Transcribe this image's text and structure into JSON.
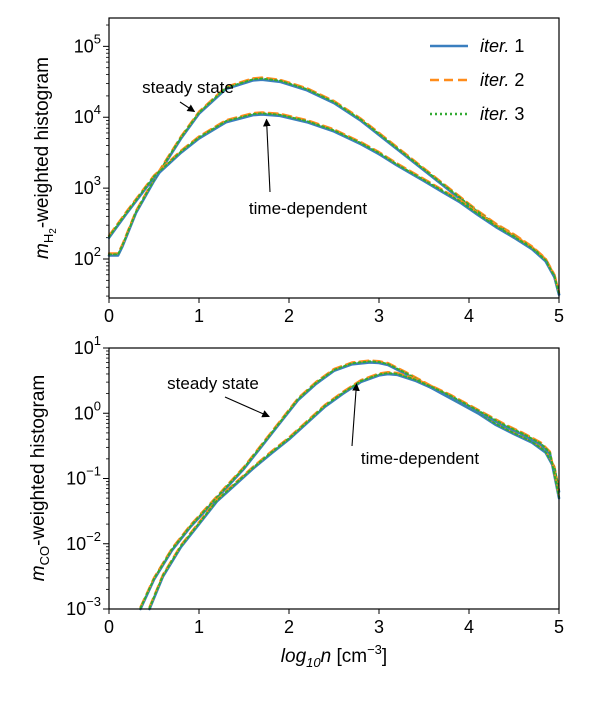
{
  "chart_data": [
    {
      "type": "line",
      "panel": "top",
      "ylabel": {
        "prefix": "m",
        "sub": "H",
        "subsub": "2",
        "suffix": "-weighted histogram"
      },
      "xlabel": "",
      "xlim": [
        0,
        5
      ],
      "ylim_log10": [
        1.45,
        5.4
      ],
      "yscale": "log",
      "x_ticks": [
        "0",
        "1",
        "2",
        "3",
        "4",
        "5"
      ],
      "y_ticks": [
        {
          "base": "10",
          "exp": "2",
          "log": 2
        },
        {
          "base": "10",
          "exp": "3",
          "log": 3
        },
        {
          "base": "10",
          "exp": "4",
          "log": 4
        },
        {
          "base": "10",
          "exp": "5",
          "log": 5
        }
      ],
      "legend": {
        "placement": "top-right",
        "entries": [
          {
            "label_prefix": "iter.",
            "label_num": "1",
            "color": "#3a7fbf",
            "style": "solid"
          },
          {
            "label_prefix": "iter.",
            "label_num": "2",
            "color": "#ff8c1a",
            "style": "dashed"
          },
          {
            "label_prefix": "iter.",
            "label_num": "3",
            "color": "#33aa33",
            "style": "dotted"
          }
        ]
      },
      "annotations": [
        {
          "text": "steady state",
          "arrow_to": [
            0.95,
            4.08
          ]
        },
        {
          "text": "time-dependent",
          "arrow_to": [
            1.75,
            3.97
          ]
        }
      ],
      "series": [
        {
          "name": "steady state",
          "x": [
            0,
            0.1,
            0.15,
            0.3,
            0.5,
            0.8,
            1.0,
            1.3,
            1.6,
            1.7,
            1.9,
            2.2,
            2.5,
            2.8,
            3.0,
            3.2,
            3.5,
            3.7,
            3.9,
            4.1,
            4.3,
            4.5,
            4.7,
            4.85,
            4.95,
            5.0
          ],
          "y_log10": [
            2.05,
            2.05,
            2.18,
            2.65,
            3.1,
            3.7,
            4.05,
            4.4,
            4.52,
            4.53,
            4.5,
            4.38,
            4.2,
            3.95,
            3.75,
            3.55,
            3.25,
            3.05,
            2.85,
            2.65,
            2.47,
            2.32,
            2.15,
            1.98,
            1.75,
            1.5
          ]
        },
        {
          "name": "time-dependent",
          "x": [
            0,
            0.2,
            0.5,
            0.8,
            1.0,
            1.3,
            1.6,
            1.7,
            1.9,
            2.2,
            2.5,
            2.8,
            3.0,
            3.2,
            3.5,
            3.7,
            3.9,
            4.1,
            4.3,
            4.5,
            4.7,
            4.85,
            4.95,
            5.0
          ],
          "y_log10": [
            2.3,
            2.65,
            3.15,
            3.5,
            3.7,
            3.93,
            4.03,
            4.04,
            4.02,
            3.93,
            3.8,
            3.62,
            3.48,
            3.32,
            3.1,
            2.95,
            2.8,
            2.62,
            2.45,
            2.3,
            2.14,
            1.97,
            1.74,
            1.5
          ]
        }
      ]
    },
    {
      "type": "line",
      "panel": "bottom",
      "ylabel": {
        "prefix": "m",
        "sub": "CO",
        "subsub": "",
        "suffix": "-weighted histogram"
      },
      "xlabel": {
        "prefix": "log",
        "sub": "10",
        "var": "n",
        "unit": "[cm",
        "exp": "−3",
        "unit_end": "]"
      },
      "xlim": [
        0,
        5
      ],
      "ylim_log10": [
        -3,
        1
      ],
      "yscale": "log",
      "x_ticks": [
        "0",
        "1",
        "2",
        "3",
        "4",
        "5"
      ],
      "y_ticks": [
        {
          "base": "10",
          "exp": "−3",
          "log": -3
        },
        {
          "base": "10",
          "exp": "−2",
          "log": -2
        },
        {
          "base": "10",
          "exp": "−1",
          "log": -1
        },
        {
          "base": "10",
          "exp": "0",
          "log": 0
        },
        {
          "base": "10",
          "exp": "1",
          "log": 1
        }
      ],
      "annotations": [
        {
          "text": "steady state",
          "arrow_to": [
            1.78,
            -0.05
          ]
        },
        {
          "text": "time-dependent",
          "arrow_to": [
            2.75,
            0.45
          ]
        }
      ],
      "series": [
        {
          "name": "steady state",
          "x": [
            0.35,
            0.5,
            0.7,
            0.9,
            1.1,
            1.3,
            1.5,
            1.7,
            1.9,
            2.1,
            2.3,
            2.5,
            2.7,
            2.9,
            3.0,
            3.1,
            3.3,
            3.5,
            3.7,
            3.9,
            4.1,
            4.3,
            4.5,
            4.7,
            4.85,
            4.95,
            5.0
          ],
          "y_log10": [
            -3.0,
            -2.55,
            -2.1,
            -1.75,
            -1.45,
            -1.15,
            -0.85,
            -0.5,
            -0.15,
            0.2,
            0.45,
            0.65,
            0.75,
            0.78,
            0.77,
            0.74,
            0.6,
            0.45,
            0.3,
            0.15,
            0.0,
            -0.18,
            -0.32,
            -0.45,
            -0.6,
            -0.85,
            -1.2
          ]
        },
        {
          "name": "time-dependent",
          "x": [
            0.45,
            0.6,
            0.8,
            1.0,
            1.2,
            1.4,
            1.6,
            1.8,
            2.0,
            2.2,
            2.4,
            2.6,
            2.8,
            3.0,
            3.1,
            3.2,
            3.4,
            3.6,
            3.8,
            4.0,
            4.2,
            4.4,
            4.6,
            4.8,
            4.9,
            5.0
          ],
          "y_log10": [
            -3.0,
            -2.5,
            -2.05,
            -1.7,
            -1.35,
            -1.1,
            -0.85,
            -0.62,
            -0.4,
            -0.15,
            0.1,
            0.3,
            0.48,
            0.58,
            0.6,
            0.59,
            0.5,
            0.38,
            0.25,
            0.1,
            -0.05,
            -0.2,
            -0.33,
            -0.48,
            -0.62,
            -1.3
          ]
        }
      ]
    }
  ]
}
